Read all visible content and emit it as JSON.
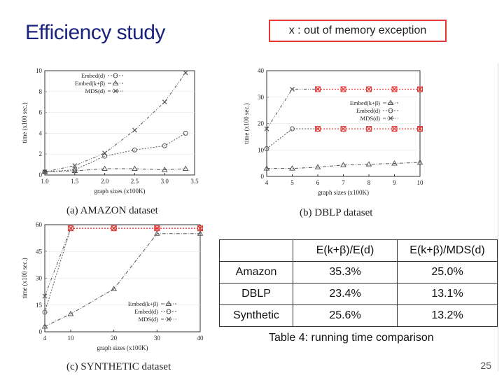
{
  "slide": {
    "title": "Efficiency study",
    "note": "x : out of memory exception",
    "page_number": "25"
  },
  "colors": {
    "title": "#1a237e",
    "note_border": "#e53935",
    "oom_marker": "#e53935",
    "series_line": "#555555"
  },
  "table": {
    "headers": [
      "",
      "E(k+β)/E(d)",
      "E(k+β)/MDS(d)"
    ],
    "rows": [
      [
        "Amazon",
        "35.3%",
        "25.0%"
      ],
      [
        "DBLP",
        "23.4%",
        "13.1%"
      ],
      [
        "Synthetic",
        "25.6%",
        "13.2%"
      ]
    ],
    "caption": "Table 4: running time comparison"
  },
  "chart_data": [
    {
      "type": "line",
      "caption_label": "(a)",
      "caption_name": "AMAZON dataset",
      "xlabel": "graph sizes (x100K)",
      "ylabel": "time (x100 sec.)",
      "xlim": [
        1.0,
        3.5
      ],
      "ylim": [
        0,
        10
      ],
      "xticks": [
        "1.0",
        "1.5",
        "2.0",
        "2.5",
        "3.0",
        "3.5"
      ],
      "yticks": [
        "0",
        "2",
        "4",
        "6",
        "8",
        "10"
      ],
      "legend": "top-left",
      "series": [
        {
          "name": "Embed(d)",
          "marker": "circle",
          "x": [
            1.0,
            1.5,
            2.0,
            2.5,
            3.0,
            3.35
          ],
          "y": [
            0.3,
            0.5,
            1.8,
            2.4,
            2.8,
            4.0
          ]
        },
        {
          "name": "Embed(k+β)",
          "marker": "triangle",
          "x": [
            1.0,
            1.5,
            2.0,
            2.5,
            3.0,
            3.35
          ],
          "y": [
            0.3,
            0.4,
            0.6,
            0.6,
            0.5,
            0.6
          ]
        },
        {
          "name": "MDS(d)",
          "marker": "x",
          "x": [
            1.0,
            1.5,
            2.0,
            2.5,
            3.0,
            3.35
          ],
          "y": [
            0.3,
            0.9,
            2.1,
            4.3,
            7.0,
            9.8
          ]
        }
      ]
    },
    {
      "type": "line",
      "caption_label": "(b)",
      "caption_name": "DBLP dataset",
      "xlabel": "graph sizes (x100K)",
      "ylabel": "time (x100 sec.)",
      "xlim": [
        4,
        10
      ],
      "ylim": [
        0,
        40
      ],
      "xticks": [
        "4",
        "5",
        "6",
        "7",
        "8",
        "9",
        "10"
      ],
      "yticks": [
        "0",
        "10",
        "20",
        "30",
        "40"
      ],
      "legend": "right",
      "series": [
        {
          "name": "Embed(k+β)",
          "marker": "triangle",
          "x": [
            4,
            5,
            6,
            7,
            8,
            9,
            10
          ],
          "y": [
            3,
            3,
            3.5,
            4.3,
            4.6,
            4.9,
            5.3
          ]
        },
        {
          "name": "Embed(d)",
          "marker": "circle",
          "x": [
            4,
            5,
            6,
            7,
            8,
            9,
            10
          ],
          "y": [
            10.5,
            18,
            18,
            18,
            18,
            18,
            18
          ],
          "oom_from": 6
        },
        {
          "name": "MDS(d)",
          "marker": "x",
          "x": [
            4,
            5,
            6,
            7,
            8,
            9,
            10
          ],
          "y": [
            18,
            33,
            33,
            33,
            33,
            33,
            33
          ],
          "oom_from": 6
        }
      ]
    },
    {
      "type": "line",
      "caption_label": "(c)",
      "caption_name": "SYNTHETIC dataset",
      "xlabel": "graph sizes (x100K)",
      "ylabel": "time (x100 sec.)",
      "xlim": [
        4,
        40
      ],
      "ylim": [
        0,
        60
      ],
      "xticks": [
        "4",
        "10",
        "20",
        "30",
        "40"
      ],
      "yticks": [
        "0",
        "15",
        "30",
        "45",
        "60"
      ],
      "legend": "bottom-right",
      "series": [
        {
          "name": "Embed(k+β)",
          "marker": "triangle",
          "x": [
            4,
            10,
            20,
            30,
            40
          ],
          "y": [
            3,
            10,
            24,
            55,
            55
          ]
        },
        {
          "name": "Embed(d)",
          "marker": "circle",
          "x": [
            4,
            10,
            20,
            30,
            40
          ],
          "y": [
            11,
            58,
            58,
            58,
            58
          ],
          "oom_from": 10
        },
        {
          "name": "MDS(d)",
          "marker": "x",
          "x": [
            4,
            10,
            20,
            30,
            40
          ],
          "y": [
            20,
            58,
            58,
            58,
            58
          ],
          "oom_from": 10
        }
      ]
    }
  ]
}
